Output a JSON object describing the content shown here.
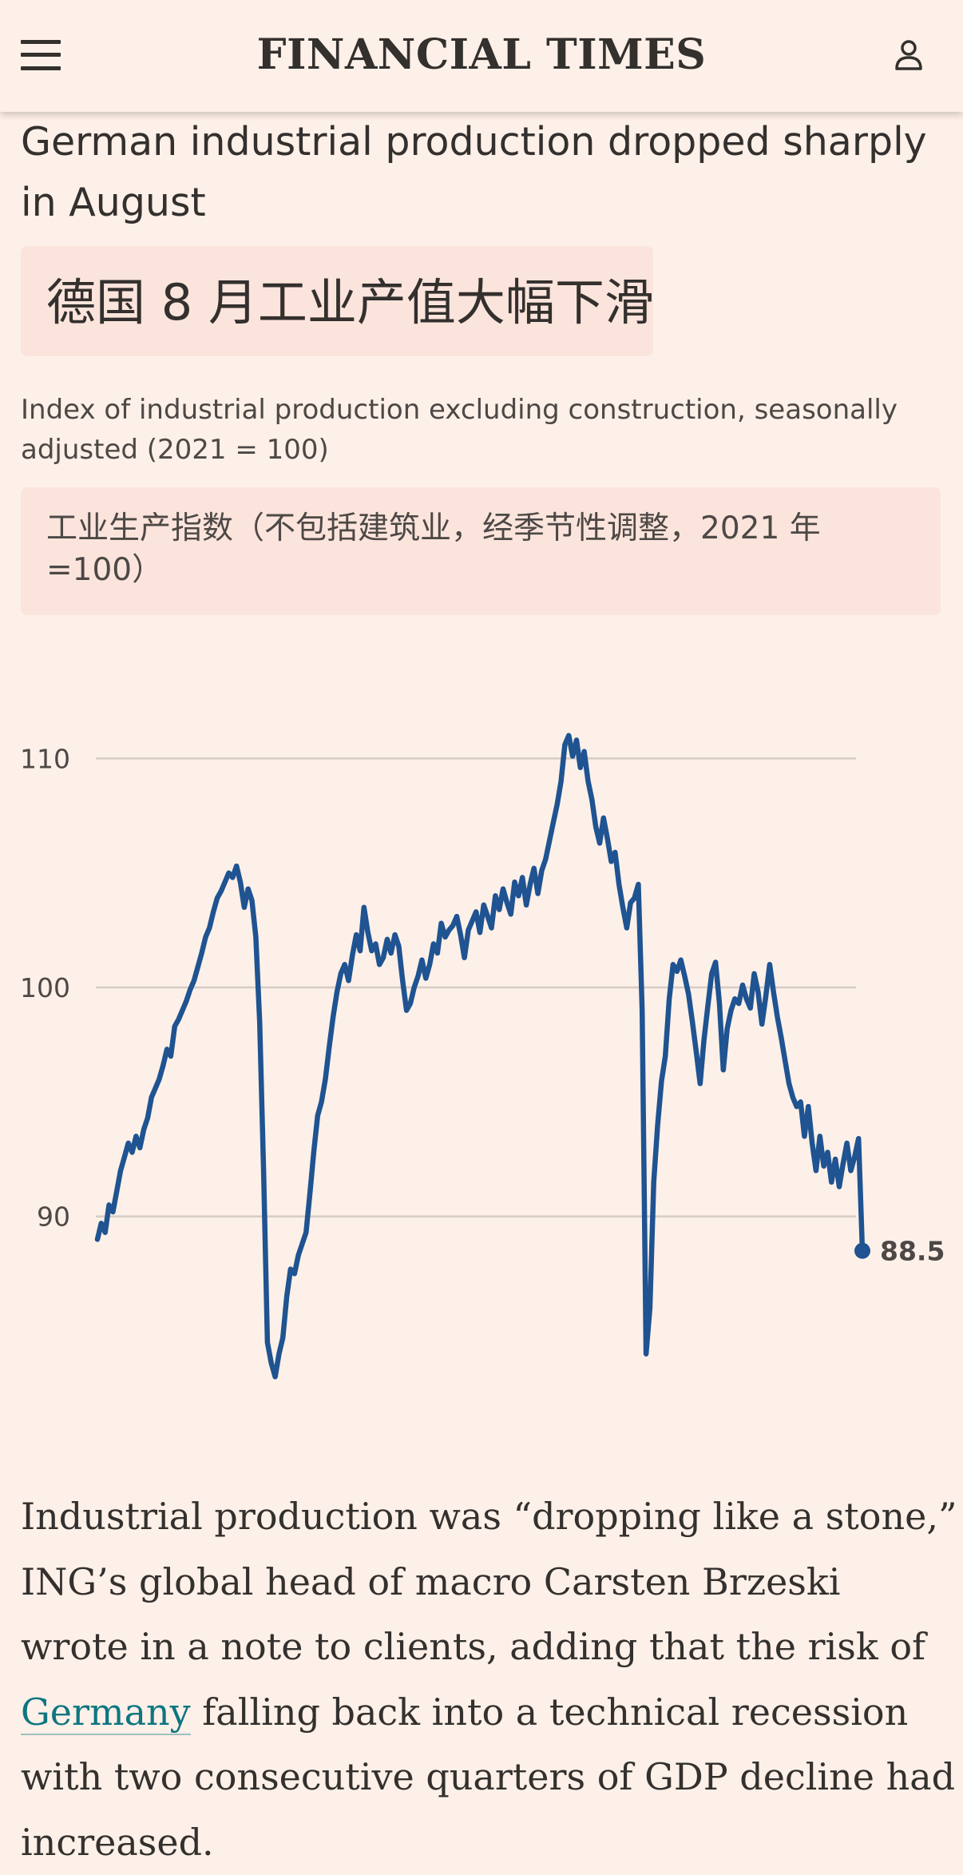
{
  "header": {
    "brand": "FINANCIAL TIMES",
    "menu_icon": "hamburger-menu-icon",
    "account_icon": "user-account-icon"
  },
  "article": {
    "chart_headline": "German industrial production dropped sharply in August",
    "chart_headline_zh": "德国 8 月工业产值大幅下滑",
    "chart_subtitle": "Index of industrial production excluding construction, seasonally adjusted (2021 = 100)",
    "chart_subtitle_zh": "工业生产指数（不包括建筑业，经季节性调整，2021 年=100）",
    "paragraph": {
      "before_link": "Industrial production was “dropping like a stone,” ING’s global head of macro Carsten Brzeski wrote in a note to clients, adding that the risk of ",
      "link_text": "Germany",
      "after_link": " falling back into a technical recession with two consecutive quarters of GDP decline had increased."
    }
  },
  "colors": {
    "background": "#FDF0E8",
    "line": "#1F5391",
    "grid": "#D5CCC6",
    "text": "#33302E",
    "link": "#0D7680"
  },
  "chart_data": {
    "type": "line",
    "title": "German industrial production dropped sharply in August",
    "subtitle": "Index of industrial production excluding construction, seasonally adjusted (2021 = 100)",
    "y_ticks": [
      90,
      100,
      110
    ],
    "ylim": [
      82,
      112
    ],
    "grid": true,
    "end_label": "88.5",
    "series": [
      {
        "values": [
          89.0,
          89.7,
          89.3,
          90.5,
          90.2,
          91.1,
          92.0,
          92.6,
          93.2,
          92.8,
          93.5,
          93.0,
          93.8,
          94.3,
          95.2,
          95.6,
          96.0,
          96.6,
          97.3,
          97.0,
          98.3,
          98.6,
          99.0,
          99.4,
          99.9,
          100.3,
          100.9,
          101.5,
          102.2,
          102.6,
          103.3,
          103.9,
          104.2,
          104.6,
          105.0,
          104.8,
          105.3,
          104.6,
          103.5,
          104.3,
          103.8,
          102.2,
          98.5,
          92.0,
          84.5,
          83.6,
          83.0,
          84.0,
          84.7,
          86.5,
          87.7,
          87.5,
          88.3,
          88.8,
          89.3,
          91.0,
          92.8,
          94.4,
          95.0,
          96.0,
          97.4,
          98.7,
          99.8,
          100.6,
          101.0,
          100.3,
          101.4,
          102.3,
          101.6,
          103.5,
          102.4,
          101.6,
          101.9,
          101.0,
          101.3,
          102.1,
          101.5,
          102.3,
          101.8,
          100.3,
          99.0,
          99.3,
          100.0,
          100.5,
          101.2,
          100.4,
          101.0,
          101.9,
          101.5,
          102.8,
          102.2,
          102.5,
          102.7,
          103.1,
          102.3,
          101.3,
          102.5,
          102.9,
          103.3,
          102.4,
          103.6,
          103.1,
          102.6,
          104.0,
          103.4,
          104.3,
          103.7,
          103.2,
          104.6,
          104.0,
          104.8,
          103.6,
          104.5,
          105.2,
          104.1,
          105.1,
          105.6,
          106.4,
          107.2,
          108.0,
          109.0,
          110.6,
          111.0,
          110.1,
          110.8,
          109.6,
          110.3,
          109.0,
          108.2,
          107.0,
          106.3,
          107.4,
          106.5,
          105.5,
          105.9,
          104.5,
          103.5,
          102.6,
          103.7,
          103.9,
          104.5,
          99.0,
          84.0,
          86.0,
          91.5,
          94.0,
          95.9,
          97.0,
          99.5,
          101.0,
          100.7,
          101.2,
          100.5,
          99.7,
          98.5,
          97.2,
          95.8,
          97.7,
          99.2,
          100.6,
          101.1,
          99.3,
          96.4,
          98.2,
          99.0,
          99.5,
          99.3,
          100.1,
          99.5,
          99.1,
          100.6,
          99.8,
          98.4,
          99.6,
          101.0,
          99.8,
          98.7,
          97.8,
          96.8,
          95.8,
          95.2,
          94.8,
          95.0,
          93.5,
          94.8,
          93.2,
          92.0,
          93.5,
          92.2,
          92.8,
          91.5,
          92.5,
          91.3,
          92.3,
          93.2,
          92.0,
          92.6,
          93.4,
          88.5
        ]
      }
    ]
  }
}
